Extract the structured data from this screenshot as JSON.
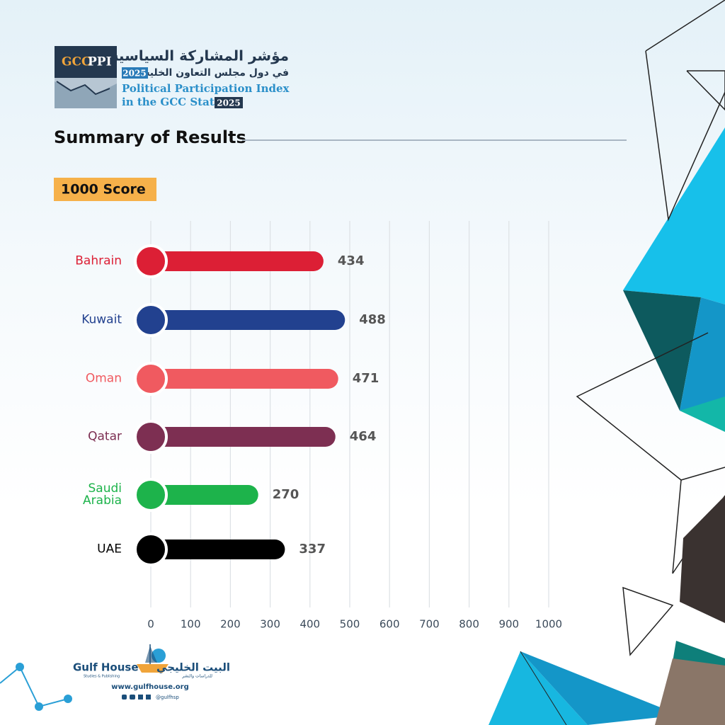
{
  "header": {
    "logo_gcc": "GCC",
    "logo_ppi": "PPI",
    "title_ar": "مؤشر المشاركة السياسية",
    "subtitle_ar": "في دول مجلس التعاون الخليجي",
    "year_ar": "2025",
    "title_en": "Political Participation Index",
    "subtitle_en": "in the GCC States",
    "year_en": "2025"
  },
  "chart_data": {
    "type": "bar",
    "orientation": "horizontal",
    "title": "Summary of Results",
    "subtitle": "1000 Score",
    "categories": [
      "Bahrain",
      "Kuwait",
      "Oman",
      "Qatar",
      "Saudi Arabia",
      "UAE"
    ],
    "values": [
      434,
      488,
      471,
      464,
      270,
      337
    ],
    "colors": [
      "#dc1f35",
      "#22418f",
      "#f05a60",
      "#7d2f52",
      "#1db34b",
      "#000000"
    ],
    "xlim": [
      0,
      1000
    ],
    "xticks": [
      0,
      100,
      200,
      300,
      400,
      500,
      600,
      700,
      800,
      900,
      1000
    ],
    "grid": true
  },
  "footer": {
    "brand_en": "Gulf House",
    "brand_en_sub": "Studies & Publishing",
    "brand_ar": "البيت الخليجي",
    "brand_ar_sub": "للدراسات والنشر",
    "website": "www.gulfhouse.org",
    "handle": "@gulfhsp"
  }
}
